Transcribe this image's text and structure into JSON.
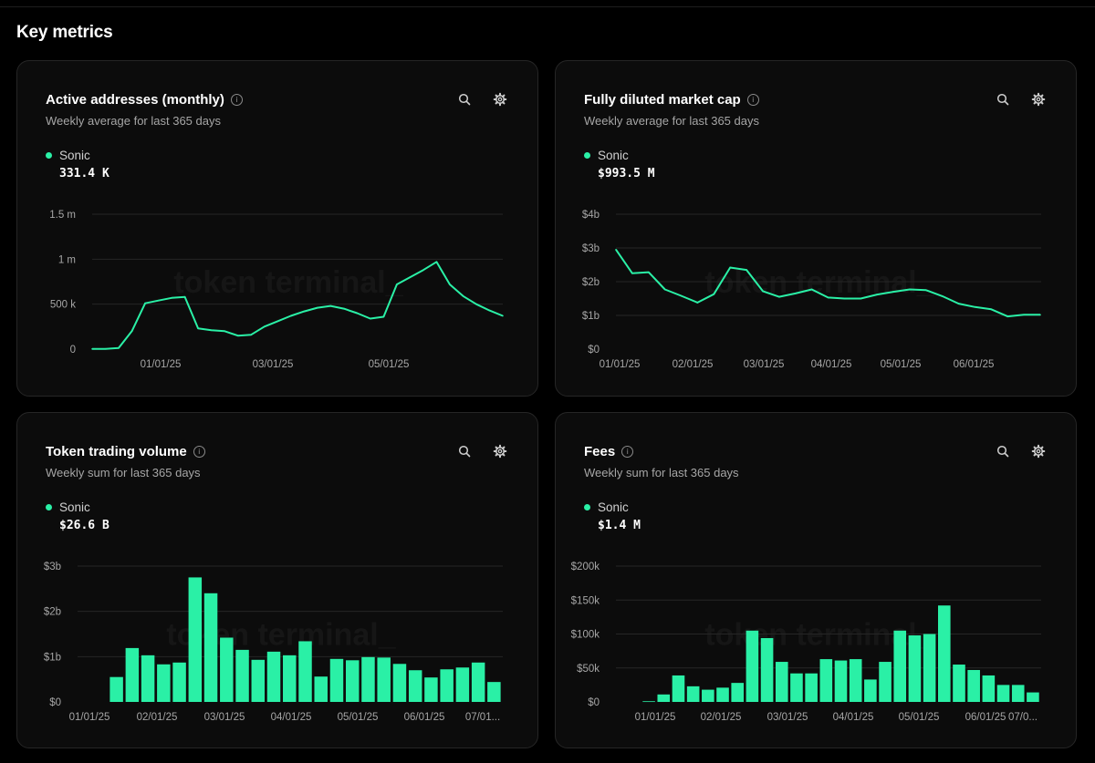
{
  "page": {
    "title": "Key metrics",
    "watermark": "token terminal_"
  },
  "colors": {
    "series": "#2af0a6",
    "grid": "#262626",
    "background": "#000000",
    "card": "#0c0c0c"
  },
  "icons": {
    "info": "info-icon",
    "search": "search-icon",
    "settings": "gear-icon"
  },
  "chart_data": [
    {
      "id": "active",
      "type": "line",
      "title": "Active addresses (monthly)",
      "subtitle": "Weekly average for last 365 days",
      "legend": {
        "name": "Sonic",
        "value": "331.4 K"
      },
      "yticks": [
        "0",
        "500 k",
        "1 m",
        "1.5 m"
      ],
      "ylim": [
        0,
        1500000
      ],
      "xticks": [
        "01/01/25",
        "03/01/25",
        "05/01/25"
      ],
      "series": [
        {
          "name": "Sonic",
          "values": [
            2000,
            3000,
            12000,
            200000,
            510000,
            540000,
            570000,
            580000,
            230000,
            210000,
            200000,
            150000,
            160000,
            250000,
            310000,
            370000,
            420000,
            460000,
            480000,
            450000,
            400000,
            340000,
            360000,
            720000,
            800000,
            880000,
            970000,
            720000,
            590000,
            500000,
            430000,
            370000
          ]
        }
      ]
    },
    {
      "id": "fdmc",
      "type": "line",
      "title": "Fully diluted market cap",
      "subtitle": "Weekly average for last 365 days",
      "legend": {
        "name": "Sonic",
        "value": "$993.5 M"
      },
      "yticks": [
        "$0",
        "$1b",
        "$2b",
        "$3b",
        "$4b"
      ],
      "ylim": [
        0,
        4
      ],
      "xticks": [
        "01/01/25",
        "02/01/25",
        "03/01/25",
        "04/01/25",
        "05/01/25",
        "06/01/25"
      ],
      "series": [
        {
          "name": "Sonic",
          "values": [
            2.95,
            2.25,
            2.28,
            1.77,
            1.58,
            1.38,
            1.63,
            2.42,
            2.35,
            1.72,
            1.55,
            1.65,
            1.77,
            1.53,
            1.5,
            1.5,
            1.62,
            1.7,
            1.77,
            1.75,
            1.57,
            1.35,
            1.25,
            1.18,
            0.97,
            1.02,
            1.02
          ]
        }
      ]
    },
    {
      "id": "volume",
      "type": "bar",
      "title": "Token trading volume",
      "subtitle": "Weekly sum for last 365 days",
      "legend": {
        "name": "Sonic",
        "value": "$26.6 B"
      },
      "yticks": [
        "$0",
        "$1b",
        "$2b",
        "$3b"
      ],
      "ylim": [
        0,
        3
      ],
      "xticks": [
        "01/01/25",
        "02/01/25",
        "03/01/25",
        "04/01/25",
        "05/01/25",
        "06/01/25",
        "07/01..."
      ],
      "series": [
        {
          "name": "Sonic",
          "values": [
            0.55,
            1.19,
            1.03,
            0.83,
            0.87,
            2.75,
            2.4,
            1.42,
            1.15,
            0.93,
            1.11,
            1.03,
            1.34,
            0.56,
            0.95,
            0.92,
            0.99,
            0.98,
            0.84,
            0.7,
            0.54,
            0.72,
            0.76,
            0.87,
            0.44
          ]
        }
      ]
    },
    {
      "id": "fees",
      "type": "bar",
      "title": "Fees",
      "subtitle": "Weekly sum for last 365 days",
      "legend": {
        "name": "Sonic",
        "value": "$1.4 M"
      },
      "yticks": [
        "$0",
        "$50k",
        "$100k",
        "$150k",
        "$200k"
      ],
      "ylim": [
        0,
        200000
      ],
      "xticks": [
        "01/01/25",
        "02/01/25",
        "03/01/25",
        "04/01/25",
        "05/01/25",
        "06/01/25",
        "07/0..."
      ],
      "series": [
        {
          "name": "Sonic",
          "values": [
            1000,
            11000,
            39000,
            23000,
            18000,
            21000,
            28000,
            105000,
            94000,
            59000,
            42000,
            42000,
            63000,
            61000,
            63000,
            33000,
            59000,
            105000,
            98000,
            100000,
            142000,
            55000,
            47000,
            39000,
            25000,
            25000,
            14000
          ]
        }
      ]
    }
  ]
}
